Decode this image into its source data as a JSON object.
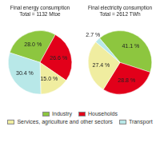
{
  "chart_data": [
    {
      "type": "pie",
      "title": "Final energy consumption",
      "subtitle": "Total = 1132 Mtoe",
      "categories": [
        "Industry",
        "Households",
        "Services, agriculture and other sectors",
        "Transport"
      ],
      "values": [
        28.0,
        26.6,
        15.0,
        30.4
      ],
      "value_labels": [
        "28.0 %",
        "26.6 %",
        "15.0 %",
        "30.4 %"
      ],
      "colors": [
        "#8dc63f",
        "#e2001a",
        "#f0eda0",
        "#b8e8e8"
      ],
      "data_labels": true,
      "legend": "bottom"
    },
    {
      "type": "pie",
      "title": "Final electricity consumption",
      "subtitle": "Total = 2612 TWh",
      "categories": [
        "Industry",
        "Households",
        "Services, agriculture and other sectors",
        "Transport"
      ],
      "values": [
        41.1,
        28.8,
        27.4,
        2.7
      ],
      "value_labels": [
        "41.1 %",
        "28.8 %",
        "27.4 %",
        "2.7 %"
      ],
      "colors": [
        "#8dc63f",
        "#e2001a",
        "#f0eda0",
        "#b8e8e8"
      ],
      "data_labels": true,
      "legend": "bottom"
    }
  ]
}
